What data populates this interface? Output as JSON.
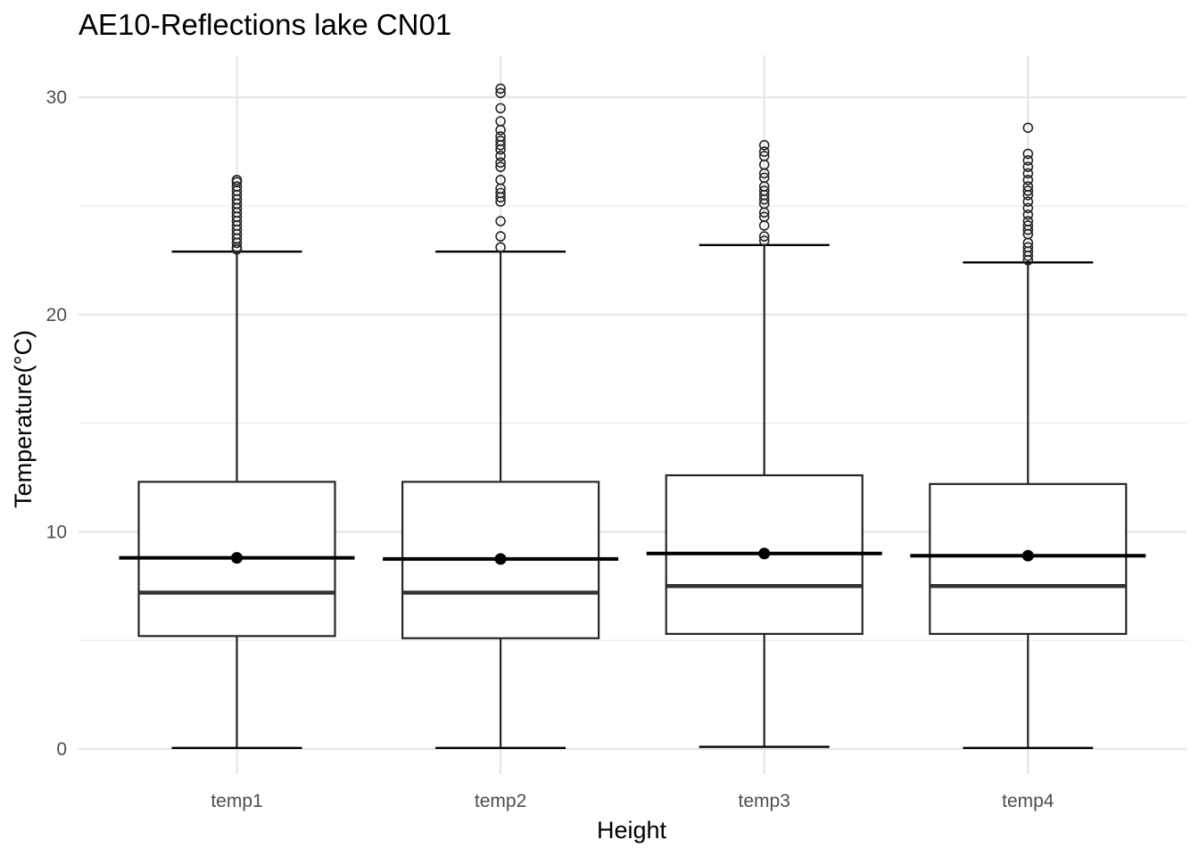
{
  "chart_data": {
    "type": "boxplot",
    "title": "AE10-Reflections lake CN01",
    "xlabel": "Height",
    "ylabel": "Temperature(°C)",
    "categories": [
      "temp1",
      "temp2",
      "temp3",
      "temp4"
    ],
    "ylim": [
      -1.2,
      31.9
    ],
    "yticks": [
      0,
      10,
      20,
      30
    ],
    "grid": true,
    "boxes": [
      {
        "name": "temp1",
        "min": 0.05,
        "q1": 5.2,
        "median": 7.2,
        "q3": 12.3,
        "max": 22.9,
        "mean": 8.8,
        "outliers": [
          23.0,
          23.1,
          23.3,
          23.5,
          23.7,
          23.9,
          24.1,
          24.3,
          24.5,
          24.7,
          24.9,
          25.1,
          25.3,
          25.5,
          25.7,
          25.9,
          26.1,
          26.2
        ]
      },
      {
        "name": "temp2",
        "min": 0.05,
        "q1": 5.1,
        "median": 7.2,
        "q3": 12.3,
        "max": 22.9,
        "mean": 8.75,
        "outliers": [
          23.1,
          23.6,
          24.3,
          25.2,
          25.4,
          25.6,
          25.8,
          26.2,
          26.8,
          27.0,
          27.3,
          27.6,
          27.8,
          28.0,
          28.2,
          28.5,
          28.9,
          29.5,
          30.2,
          30.4
        ]
      },
      {
        "name": "temp3",
        "min": 0.1,
        "q1": 5.3,
        "median": 7.5,
        "q3": 12.6,
        "max": 23.2,
        "mean": 9.0,
        "outliers": [
          23.4,
          23.6,
          24.1,
          24.5,
          24.7,
          25.1,
          25.3,
          25.5,
          25.7,
          25.9,
          26.3,
          26.5,
          26.9,
          27.3,
          27.5,
          27.8
        ]
      },
      {
        "name": "temp4",
        "min": 0.05,
        "q1": 5.3,
        "median": 7.5,
        "q3": 12.2,
        "max": 22.4,
        "mean": 8.9,
        "outliers": [
          22.5,
          22.7,
          22.9,
          23.1,
          23.3,
          23.7,
          23.9,
          24.1,
          24.3,
          24.6,
          24.9,
          25.2,
          25.5,
          25.7,
          25.9,
          26.2,
          26.5,
          26.8,
          27.1,
          27.4,
          28.6
        ]
      }
    ]
  }
}
